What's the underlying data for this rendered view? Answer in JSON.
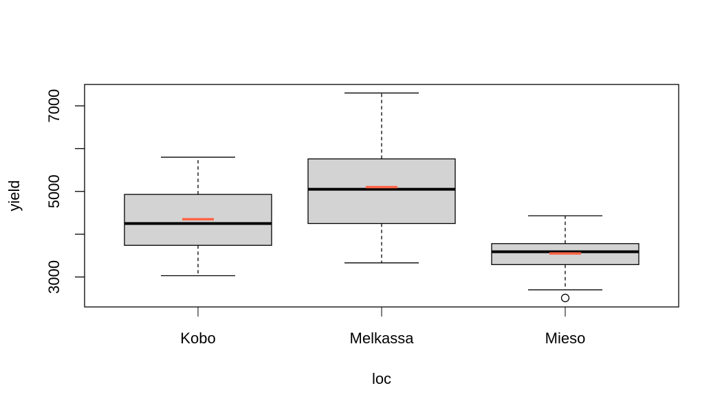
{
  "chart_data": {
    "type": "box",
    "xlabel": "loc",
    "ylabel": "yield",
    "ylim": [
      2300,
      7500
    ],
    "yticks": [
      3000,
      5000,
      7000
    ],
    "yticks_minor": [
      3000,
      4000,
      5000,
      6000,
      7000
    ],
    "categories": [
      "Kobo",
      "Melkassa",
      "Mieso"
    ],
    "boxes": [
      {
        "name": "Kobo",
        "whisker_low": 3030,
        "q1": 3740,
        "median": 4250,
        "q3": 4930,
        "whisker_high": 5800,
        "mean": 4350,
        "outliers": []
      },
      {
        "name": "Melkassa",
        "whisker_low": 3330,
        "q1": 4250,
        "median": 5050,
        "q3": 5760,
        "whisker_high": 7300,
        "mean": 5100,
        "outliers": []
      },
      {
        "name": "Mieso",
        "whisker_low": 2700,
        "q1": 3290,
        "median": 3590,
        "q3": 3780,
        "whisker_high": 4430,
        "mean": 3550,
        "outliers": [
          2510
        ]
      }
    ],
    "colors": {
      "box_fill": "#d3d3d3",
      "median": "#000000",
      "mean": "#ff6347",
      "axis": "#000000"
    }
  }
}
